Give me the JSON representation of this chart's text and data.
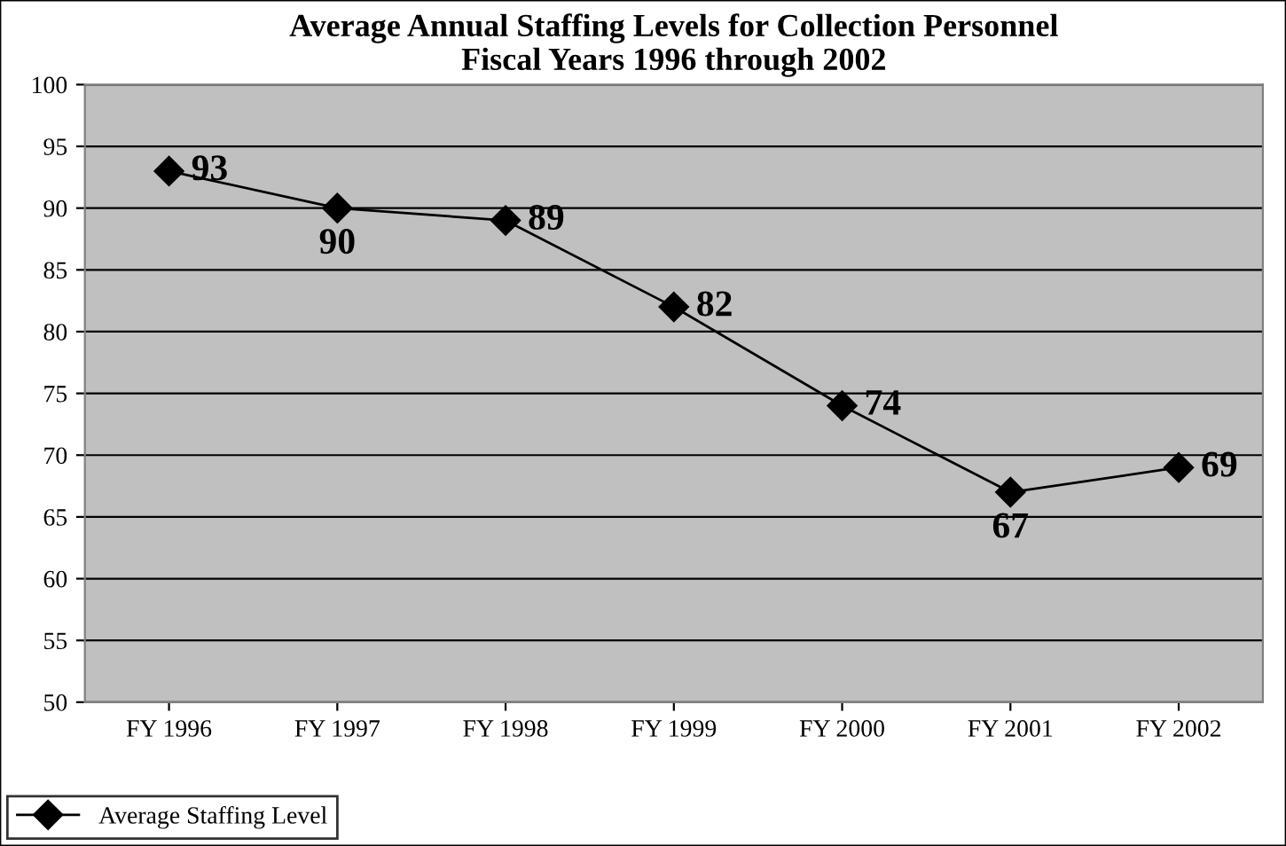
{
  "chart_data": {
    "type": "line",
    "title": "Average Annual Staffing Levels for Collection Personnel\nFiscal Years 1996 through 2002",
    "categories": [
      "FY 1996",
      "FY 1997",
      "FY 1998",
      "FY 1999",
      "FY 2000",
      "FY 2001",
      "FY 2002"
    ],
    "series": [
      {
        "name": "Average Staffing Level",
        "color": "#000000",
        "values": [
          93,
          90,
          89,
          82,
          74,
          67,
          69
        ]
      }
    ],
    "ylim": [
      50,
      100
    ],
    "yticks": [
      50,
      55,
      60,
      65,
      70,
      75,
      80,
      85,
      90,
      95,
      100
    ],
    "grid": "y",
    "legend": "bottom left",
    "marker": "diamond",
    "line_style": "solid",
    "data_labels": true
  }
}
